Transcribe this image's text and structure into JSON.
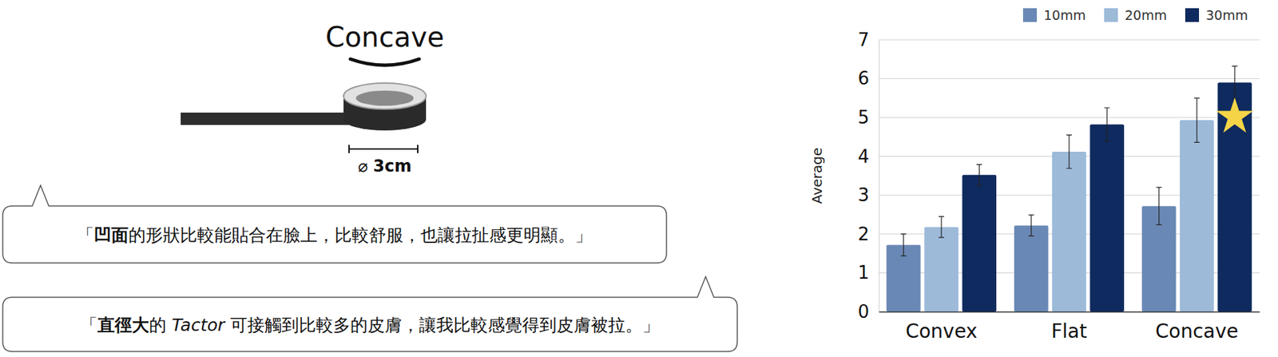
{
  "chart_data": {
    "type": "bar",
    "categories": [
      "Convex",
      "Flat",
      "Concave"
    ],
    "series": [
      {
        "name": "10mm",
        "color": "#6a88b5",
        "values": [
          1.72,
          2.22,
          2.72
        ],
        "errors": [
          0.28,
          0.27,
          0.48
        ]
      },
      {
        "name": "20mm",
        "color": "#9dbad9",
        "values": [
          2.18,
          4.12,
          4.93
        ],
        "errors": [
          0.27,
          0.43,
          0.57
        ]
      },
      {
        "name": "30mm",
        "color": "#0f2a5e",
        "values": [
          3.52,
          4.82,
          5.9
        ],
        "errors": [
          0.27,
          0.43,
          0.42
        ]
      }
    ],
    "y_label": "Average",
    "ylim": [
      0,
      7
    ],
    "yticks": [
      0,
      1,
      2,
      3,
      4,
      5,
      6,
      7
    ],
    "grid": true,
    "legend": "top-right"
  },
  "photo": {
    "label": "Concave",
    "dimension": [
      {
        "text": "⌀ "
      },
      {
        "text": "3cm",
        "style": "bold"
      }
    ]
  },
  "quotes": [
    {
      "segments": [
        {
          "text": "「"
        },
        {
          "text": "凹面",
          "style": "bold"
        },
        {
          "text": "的形狀比較能貼合在臉上，比較舒服，也讓拉扯感更明顯。」"
        }
      ]
    },
    {
      "segments": [
        {
          "text": "「"
        },
        {
          "text": "直徑大",
          "style": "bold"
        },
        {
          "text": "的 "
        },
        {
          "text": "Tactor",
          "style": "italic"
        },
        {
          "text": " 可接觸到比較多的皮膚，讓我比較感覺得到皮膚被拉。」"
        }
      ]
    }
  ]
}
